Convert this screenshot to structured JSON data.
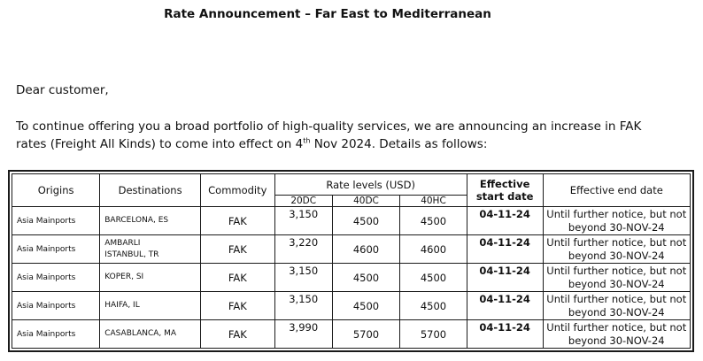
{
  "title": "Rate Announcement – Far East to Mediterranean",
  "greeting": "Dear customer,",
  "intro": {
    "before_sup": "To continue offering you a broad portfolio of high-quality services, we are announcing an increase in FAK rates (Freight All Kinds) to come into effect on 4",
    "sup": "th",
    "after_sup": " Nov 2024. Details as follows:"
  },
  "table": {
    "headers": {
      "origins": "Origins",
      "destinations": "Destinations",
      "commodity": "Commodity",
      "rate_levels": "Rate levels (USD)",
      "effective_start": "Effective start date",
      "effective_end": "Effective end date",
      "c20dc": "20DC",
      "c40dc": "40DC",
      "c40hc": "40HC"
    },
    "rows": [
      {
        "origin": "Asia Mainports",
        "dest1": "BARCELONA, ES",
        "dest2": "",
        "commodity": "FAK",
        "r20dc": "3,150",
        "r40dc": "4500",
        "r40hc": "4500",
        "start": "04-11-24",
        "end": "Until further notice, but not beyond 30-NOV-24"
      },
      {
        "origin": "Asia Mainports",
        "dest1": "AMBARLI",
        "dest2": "ISTANBUL, TR",
        "commodity": "FAK",
        "r20dc": "3,220",
        "r40dc": "4600",
        "r40hc": "4600",
        "start": "04-11-24",
        "end": "Until further notice, but not beyond 30-NOV-24"
      },
      {
        "origin": "Asia Mainports",
        "dest1": "KOPER, SI",
        "dest2": "",
        "commodity": "FAK",
        "r20dc": "3,150",
        "r40dc": "4500",
        "r40hc": "4500",
        "start": "04-11-24",
        "end": "Until further notice, but not beyond 30-NOV-24"
      },
      {
        "origin": "Asia Mainports",
        "dest1": "HAIFA, IL",
        "dest2": "",
        "commodity": "FAK",
        "r20dc": "3,150",
        "r40dc": "4500",
        "r40hc": "4500",
        "start": "04-11-24",
        "end": "Until further notice, but not beyond 30-NOV-24"
      },
      {
        "origin": "Asia Mainports",
        "dest1": "CASABLANCA, MA",
        "dest2": "",
        "commodity": "FAK",
        "r20dc": "3,990",
        "r40dc": "5700",
        "r40hc": "5700",
        "start": "04-11-24",
        "end": "Until further notice, but not beyond 30-NOV-24"
      }
    ]
  }
}
